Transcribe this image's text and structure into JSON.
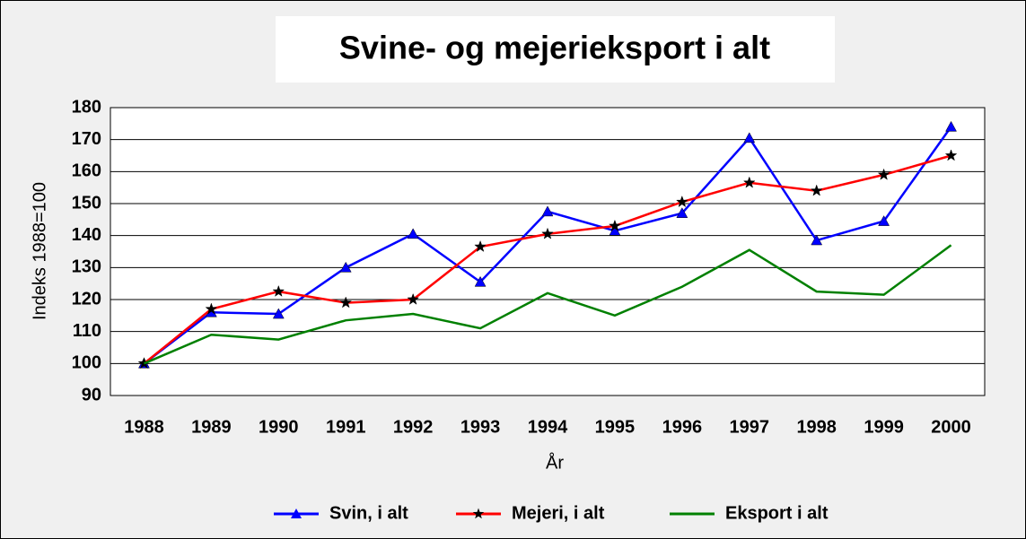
{
  "chart_data": {
    "type": "line",
    "title": "Svine- og mejerieksport i alt",
    "x_label": "År",
    "y_label": "Indeks 1988=100",
    "categories": [
      "1988",
      "1989",
      "1990",
      "1991",
      "1992",
      "1993",
      "1994",
      "1995",
      "1996",
      "1997",
      "1998",
      "1999",
      "2000"
    ],
    "series": [
      {
        "name": "Svin, i alt",
        "color": "#0000ff",
        "marker": "triangle",
        "values": [
          100,
          116,
          115.5,
          130,
          140.5,
          125.5,
          147.5,
          141.5,
          147,
          170.5,
          138.5,
          144.5,
          174
        ]
      },
      {
        "name": "Mejeri, i alt",
        "color": "#ff0000",
        "marker": "star",
        "values": [
          100,
          117,
          122.5,
          119,
          120,
          136.5,
          140.5,
          143,
          150.5,
          156.5,
          154,
          159,
          165
        ]
      },
      {
        "name": "Eksport i alt",
        "color": "#008000",
        "marker": null,
        "values": [
          100,
          109,
          107.5,
          113.5,
          115.5,
          111,
          122,
          115,
          124,
          135.5,
          122.5,
          121.5,
          137
        ]
      }
    ],
    "ylim": [
      90,
      180
    ],
    "yticks": [
      90,
      100,
      110,
      120,
      130,
      140,
      150,
      160,
      170,
      180
    ],
    "grid": true,
    "legend": "bottom"
  }
}
